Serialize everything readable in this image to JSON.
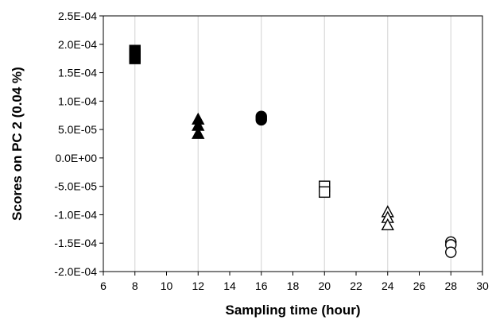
{
  "chart_data": {
    "type": "scatter",
    "title": "",
    "xlabel": "Sampling time (hour)",
    "ylabel": "Scores on  PC 2 (0.04 %)",
    "xlim": [
      6,
      30
    ],
    "ylim": [
      -0.0002,
      0.00025
    ],
    "x_ticks": [
      6,
      8,
      10,
      12,
      14,
      16,
      18,
      20,
      22,
      24,
      26,
      28,
      30
    ],
    "x_tick_labels": [
      "6",
      "8",
      "10",
      "12",
      "14",
      "16",
      "18",
      "20",
      "22",
      "24",
      "26",
      "28",
      "30"
    ],
    "y_ticks": [
      0.00025,
      0.0002,
      0.00015,
      0.0001,
      5e-05,
      0,
      -5e-05,
      -0.0001,
      -0.00015,
      -0.0002
    ],
    "y_tick_labels": [
      "2.5E-04",
      "2.0E-04",
      "1.5E-04",
      "1.0E-04",
      "5.0E-05",
      "0.0E+00",
      "-5.0E-05",
      "-1.0E-04",
      "-1.5E-04",
      "-2.0E-04"
    ],
    "vertical_gridlines_at": [
      8,
      12,
      16,
      20,
      24,
      28
    ],
    "gridline_color": "#d9d9d9",
    "series": [
      {
        "marker": "square",
        "filled": true,
        "x": [
          8,
          8,
          8,
          8
        ],
        "y": [
          0.000189,
          0.000183,
          0.000178,
          0.000175
        ]
      },
      {
        "marker": "triangle",
        "filled": true,
        "x": [
          12,
          12,
          12
        ],
        "y": [
          6.8e-05,
          5.7e-05,
          4.3e-05
        ]
      },
      {
        "marker": "circle",
        "filled": true,
        "x": [
          16,
          16,
          16
        ],
        "y": [
          7.3e-05,
          7e-05,
          6.7e-05
        ]
      },
      {
        "marker": "square",
        "filled": false,
        "x": [
          20,
          20
        ],
        "y": [
          -5e-05,
          -6e-05
        ]
      },
      {
        "marker": "triangle",
        "filled": false,
        "x": [
          24,
          24,
          24
        ],
        "y": [
          -9.5e-05,
          -0.000105,
          -0.000118
        ]
      },
      {
        "marker": "circle",
        "filled": false,
        "x": [
          28,
          28,
          28
        ],
        "y": [
          -0.000148,
          -0.000153,
          -0.000166
        ]
      }
    ]
  }
}
